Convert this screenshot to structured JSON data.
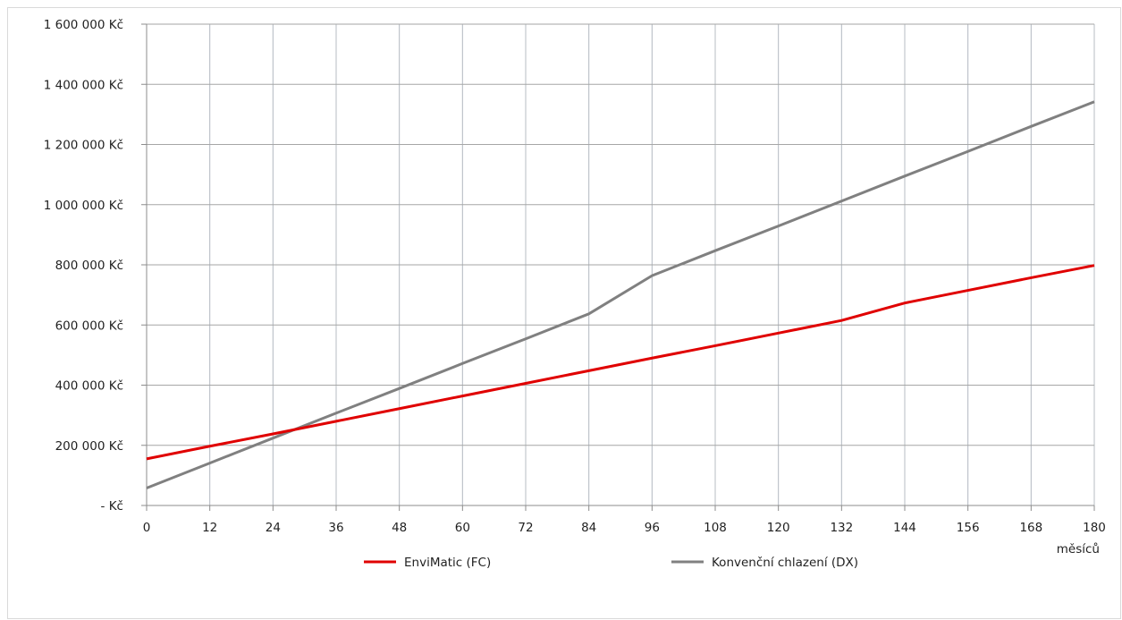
{
  "chart_data": {
    "type": "line",
    "xlabel": "měsíců",
    "ylabel": "",
    "x": [
      0,
      12,
      24,
      36,
      48,
      60,
      72,
      84,
      96,
      108,
      120,
      132,
      144,
      156,
      168,
      180
    ],
    "xticks": [
      "0",
      "12",
      "24",
      "36",
      "48",
      "60",
      "72",
      "84",
      "96",
      "108",
      "120",
      "132",
      "144",
      "156",
      "168",
      "180"
    ],
    "xlim": [
      0,
      180
    ],
    "ylim": [
      0,
      1600000
    ],
    "yticks": [
      {
        "value": 0,
        "label": "- Kč"
      },
      {
        "value": 200000,
        "label": "200 000 Kč"
      },
      {
        "value": 400000,
        "label": "400 000 Kč"
      },
      {
        "value": 600000,
        "label": "600 000 Kč"
      },
      {
        "value": 800000,
        "label": "800 000 Kč"
      },
      {
        "value": 1000000,
        "label": "1 000 000 Kč"
      },
      {
        "value": 1200000,
        "label": "1 200 000 Kč"
      },
      {
        "value": 1400000,
        "label": "1 400 000 Kč"
      },
      {
        "value": 1600000,
        "label": "1 600 000 Kč"
      }
    ],
    "grid": true,
    "legend_position": "bottom",
    "series": [
      {
        "name": "EnviMatic (FC)",
        "color": "#e00000",
        "values": [
          155000,
          197000,
          238000,
          280000,
          322000,
          364000,
          406000,
          448000,
          490000,
          531000,
          573000,
          615000,
          673000,
          715000,
          757000,
          798000
        ]
      },
      {
        "name": "Konvenční chlazení (DX)",
        "color": "#808080",
        "values": [
          58000,
          141000,
          224000,
          307000,
          389000,
          472000,
          554000,
          637000,
          764000,
          847000,
          929000,
          1012000,
          1095000,
          1177000,
          1260000,
          1342000
        ]
      }
    ]
  }
}
